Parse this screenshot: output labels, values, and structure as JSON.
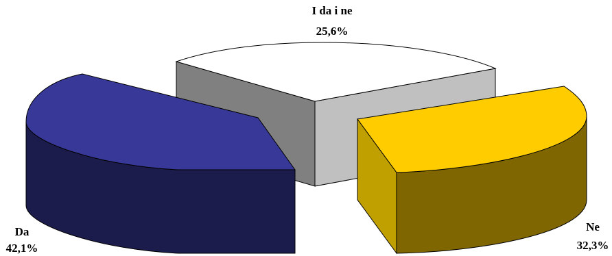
{
  "chart_data": {
    "type": "pie",
    "style": "3d-exploded",
    "categories": [
      "Da",
      "Ne",
      "I da i ne"
    ],
    "values": [
      42.1,
      32.3,
      25.6
    ],
    "value_labels": [
      "42,1%",
      "32,3%",
      "25,6%"
    ],
    "colors": {
      "Da": {
        "top": "#383898",
        "side": "#1c1c4c"
      },
      "Ne": {
        "top": "#ffcc00",
        "side": "#7f6600"
      },
      "I da i ne": {
        "top": "#ffffff",
        "side": "#808080"
      }
    },
    "legend": "none",
    "title": ""
  }
}
